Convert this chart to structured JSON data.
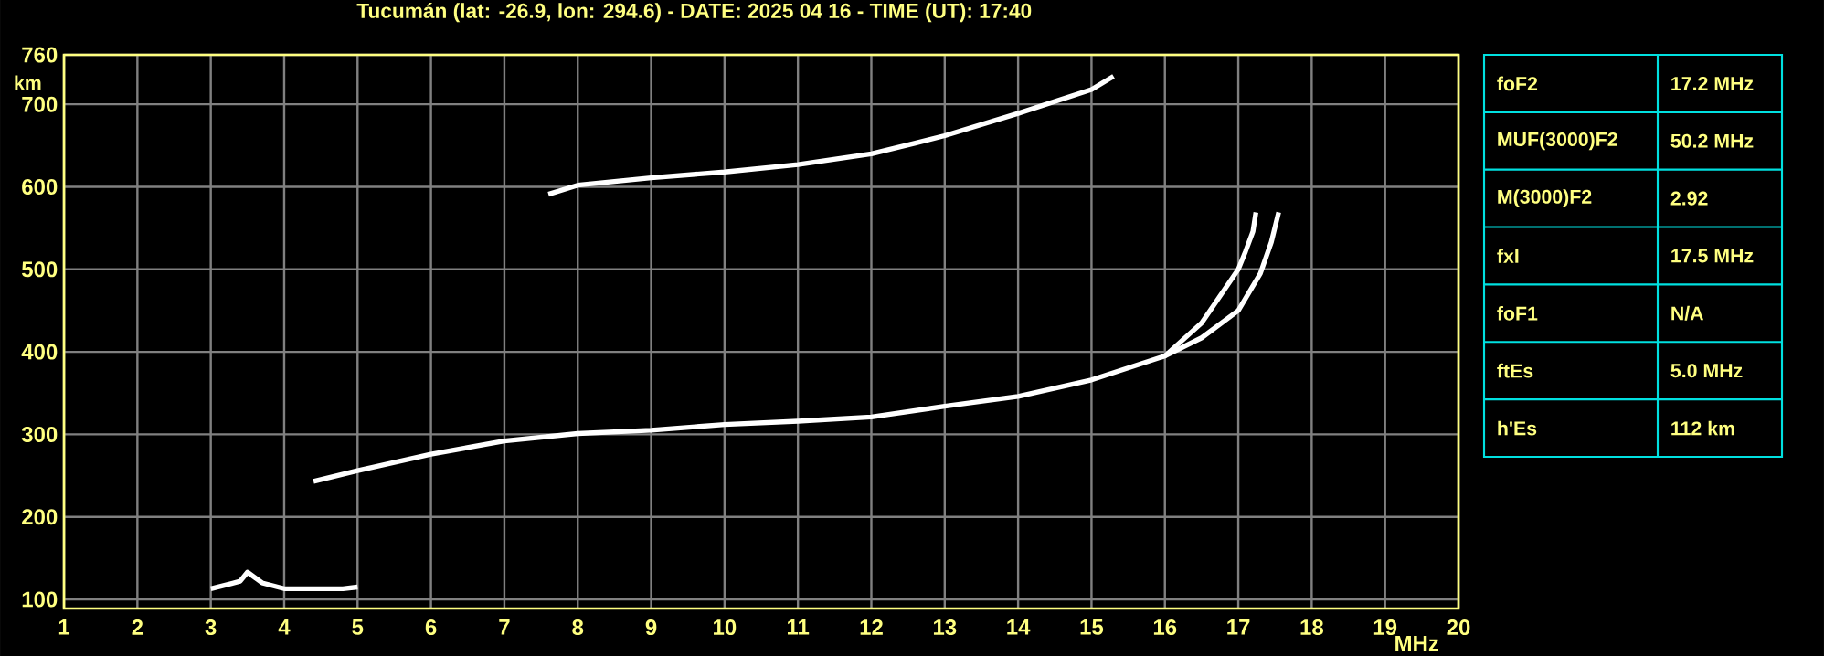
{
  "chart_data": [
    {
      "type": "line",
      "title": "Tucumán (lat: -26.9, lon: 294.6) - DATE: 2025 04 16 - TIME (UT): 17:40",
      "xlabel": "MHz",
      "ylabel": "km",
      "xlim": [
        1,
        20
      ],
      "ylim": [
        89,
        760
      ],
      "xticks": [
        1,
        2,
        3,
        4,
        5,
        6,
        7,
        8,
        9,
        10,
        11,
        12,
        13,
        14,
        15,
        16,
        17,
        18,
        19,
        20
      ],
      "yticks": [
        100,
        200,
        300,
        400,
        500,
        600,
        700,
        760
      ],
      "grid": true,
      "series": [
        {
          "color": "#ffffff",
          "x": [
            4.4,
            5,
            6,
            7,
            8,
            9,
            10,
            11,
            12,
            13,
            14,
            15,
            16,
            16.5,
            17.0,
            17.1,
            17.2,
            17.24
          ],
          "values": [
            243,
            256,
            276,
            292,
            301,
            305,
            312,
            316,
            321,
            334,
            346,
            366,
            395,
            435,
            500,
            522,
            546,
            569
          ]
        },
        {
          "color": "#ffffff",
          "x": [
            16.0,
            16.5,
            17.0,
            17.3,
            17.45,
            17.55
          ],
          "values": [
            395,
            417,
            450,
            495,
            533,
            569
          ]
        },
        {
          "color": "#ffffff",
          "x": [
            7.6,
            8,
            9,
            10,
            11,
            12,
            12.6,
            13,
            14,
            15,
            15.3
          ],
          "values": [
            591,
            602,
            611,
            618,
            627,
            640,
            653,
            662,
            689,
            718,
            734
          ]
        },
        {
          "color": "#ffffff",
          "x": [
            3.0,
            3.4,
            3.5,
            3.7,
            4.0,
            4.8,
            5.0
          ],
          "values": [
            113,
            122,
            133,
            120,
            113,
            113,
            115
          ]
        }
      ]
    },
    {
      "type": "other",
      "annotations": [
        "foF2",
        "17.2 MHz",
        "MUF(3000)F2",
        "50.2 MHz",
        "M(3000)F2",
        "2.92",
        "fxI",
        "17.5 MHz",
        "foF1",
        "N/A",
        "ftEs",
        "5.0 MHz",
        "h'Es",
        "112 km"
      ]
    }
  ]
}
